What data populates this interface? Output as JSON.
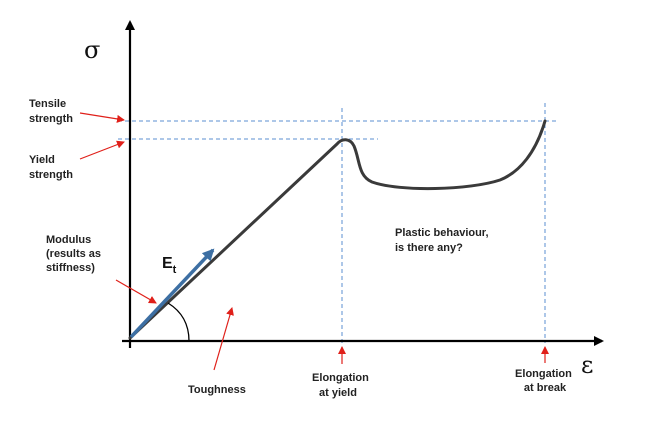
{
  "axes": {
    "y_symbol": "σ",
    "x_symbol": "ε"
  },
  "modulus_symbol": {
    "base": "E",
    "subscript": "t"
  },
  "labels": {
    "tensile_strength": [
      "Tensile",
      "strength"
    ],
    "yield_strength": [
      "Yield",
      "strength"
    ],
    "modulus": [
      "Modulus",
      "(results as",
      "stiffness)"
    ],
    "plastic_behaviour": [
      "Plastic behaviour,",
      "is there any?"
    ],
    "toughness": "Toughness",
    "elongation_yield": [
      "Elongation",
      "at yield"
    ],
    "elongation_break": [
      "Elongation",
      "at break"
    ]
  },
  "colors": {
    "curve": "#3a3a3a",
    "modulus_arrow": "#3d6fa3",
    "guide_lines": "#5b8fd0",
    "pointer_arrows": "#e0201a",
    "axes": "#000000"
  }
}
